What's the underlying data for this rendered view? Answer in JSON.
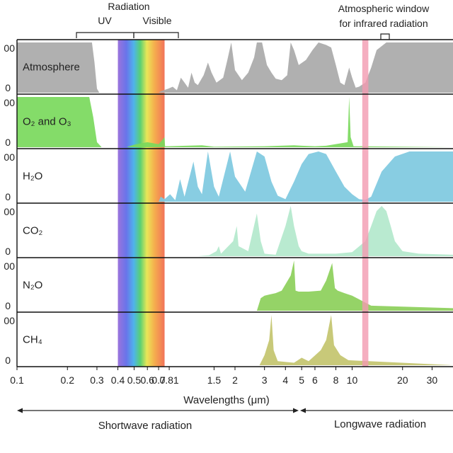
{
  "chart_data": {
    "type": "area",
    "x_scale": "log",
    "x_range": [
      0.1,
      40
    ],
    "xlabel": "Wavelengths (μm)",
    "x_ticks": [
      {
        "value": 0.1,
        "label": "0.1"
      },
      {
        "value": 0.2,
        "label": "0.2"
      },
      {
        "value": 0.3,
        "label": "0.3"
      },
      {
        "value": 0.4,
        "label": "0.4"
      },
      {
        "value": 0.5,
        "label": "0.5"
      },
      {
        "value": 0.6,
        "label": "0.6"
      },
      {
        "value": 0.7,
        "label": "0.7"
      },
      {
        "value": 0.81,
        "label": "0.81"
      },
      {
        "value": 1.5,
        "label": "1.5"
      },
      {
        "value": 2,
        "label": "2"
      },
      {
        "value": 3,
        "label": "3"
      },
      {
        "value": 4,
        "label": "4"
      },
      {
        "value": 5,
        "label": "5"
      },
      {
        "value": 6,
        "label": "6"
      },
      {
        "value": 8,
        "label": "8"
      },
      {
        "value": 10,
        "label": "10"
      },
      {
        "value": 20,
        "label": "20"
      },
      {
        "value": 30,
        "label": "30"
      }
    ],
    "y_range": [
      0,
      100
    ],
    "y_ticks_top": "00",
    "y_ticks_bottom": "0",
    "annotations": {
      "radiation": "Radiation",
      "uv": "UV",
      "visible": "Visible",
      "window_line1": "Atmospheric window",
      "window_line2": "for infrared radiation",
      "shortwave": "Shortwave radiation",
      "longwave": "Longwave radiation"
    },
    "bands": {
      "uv": [
        0.2,
        0.4
      ],
      "visible": [
        0.4,
        0.76
      ],
      "atmospheric_window": [
        11.5,
        12.5
      ]
    },
    "panels": [
      {
        "name": "Atmosphere",
        "color": "#a9a9a9",
        "points": [
          [
            0.1,
            100
          ],
          [
            0.28,
            100
          ],
          [
            0.29,
            60
          ],
          [
            0.3,
            8
          ],
          [
            0.31,
            0
          ],
          [
            0.7,
            0
          ],
          [
            0.72,
            3
          ],
          [
            0.8,
            8
          ],
          [
            0.85,
            12
          ],
          [
            0.9,
            5
          ],
          [
            0.95,
            30
          ],
          [
            1.0,
            20
          ],
          [
            1.05,
            10
          ],
          [
            1.1,
            40
          ],
          [
            1.15,
            20
          ],
          [
            1.2,
            15
          ],
          [
            1.3,
            35
          ],
          [
            1.38,
            60
          ],
          [
            1.45,
            40
          ],
          [
            1.55,
            20
          ],
          [
            1.7,
            30
          ],
          [
            1.8,
            65
          ],
          [
            1.9,
            100
          ],
          [
            2.0,
            45
          ],
          [
            2.2,
            25
          ],
          [
            2.4,
            40
          ],
          [
            2.6,
            70
          ],
          [
            2.7,
            100
          ],
          [
            2.9,
            100
          ],
          [
            3.1,
            55
          ],
          [
            3.3,
            40
          ],
          [
            3.5,
            28
          ],
          [
            3.8,
            25
          ],
          [
            4.1,
            35
          ],
          [
            4.3,
            100
          ],
          [
            4.5,
            85
          ],
          [
            4.8,
            55
          ],
          [
            5.3,
            65
          ],
          [
            5.8,
            85
          ],
          [
            6.3,
            100
          ],
          [
            7,
            95
          ],
          [
            7.5,
            90
          ],
          [
            8,
            55
          ],
          [
            8.5,
            20
          ],
          [
            9,
            15
          ],
          [
            9.6,
            50
          ],
          [
            10,
            30
          ],
          [
            10.5,
            10
          ],
          [
            11,
            12
          ],
          [
            12,
            20
          ],
          [
            13,
            50
          ],
          [
            14,
            85
          ],
          [
            16,
            100
          ],
          [
            40,
            100
          ]
        ]
      },
      {
        "name": "O₂ and O₃",
        "color": "#7ad95c",
        "points": [
          [
            0.1,
            100
          ],
          [
            0.27,
            100
          ],
          [
            0.285,
            60
          ],
          [
            0.3,
            10
          ],
          [
            0.32,
            0
          ],
          [
            0.45,
            0
          ],
          [
            0.5,
            5
          ],
          [
            0.6,
            10
          ],
          [
            0.7,
            6
          ],
          [
            0.76,
            20
          ],
          [
            0.765,
            2
          ],
          [
            0.8,
            2
          ],
          [
            1.27,
            4
          ],
          [
            1.5,
            1
          ],
          [
            3,
            2
          ],
          [
            4.5,
            4
          ],
          [
            5,
            3
          ],
          [
            6,
            2
          ],
          [
            7,
            3
          ],
          [
            9.4,
            10
          ],
          [
            9.6,
            100
          ],
          [
            9.8,
            20
          ],
          [
            10.2,
            2
          ],
          [
            40,
            0
          ]
        ]
      },
      {
        "name": "H₂O",
        "color": "#7ec9df",
        "points": [
          [
            0.7,
            0
          ],
          [
            0.72,
            10
          ],
          [
            0.76,
            5
          ],
          [
            0.82,
            15
          ],
          [
            0.88,
            3
          ],
          [
            0.94,
            45
          ],
          [
            1.0,
            10
          ],
          [
            1.13,
            80
          ],
          [
            1.2,
            30
          ],
          [
            1.27,
            15
          ],
          [
            1.38,
            100
          ],
          [
            1.5,
            30
          ],
          [
            1.6,
            10
          ],
          [
            1.87,
            100
          ],
          [
            2.0,
            50
          ],
          [
            2.3,
            20
          ],
          [
            2.7,
            100
          ],
          [
            3.0,
            90
          ],
          [
            3.3,
            40
          ],
          [
            3.6,
            12
          ],
          [
            4.0,
            5
          ],
          [
            4.5,
            40
          ],
          [
            5.0,
            75
          ],
          [
            5.5,
            95
          ],
          [
            6.3,
            100
          ],
          [
            7.0,
            95
          ],
          [
            8.0,
            60
          ],
          [
            9.0,
            30
          ],
          [
            10.0,
            15
          ],
          [
            11,
            5
          ],
          [
            12,
            4
          ],
          [
            13,
            10
          ],
          [
            15,
            60
          ],
          [
            18,
            90
          ],
          [
            22,
            100
          ],
          [
            40,
            100
          ]
        ]
      },
      {
        "name": "CO₂",
        "color": "#b3e8cc",
        "points": [
          [
            1.2,
            0
          ],
          [
            1.4,
            2
          ],
          [
            1.55,
            10
          ],
          [
            1.6,
            20
          ],
          [
            1.65,
            5
          ],
          [
            1.95,
            30
          ],
          [
            2.05,
            60
          ],
          [
            2.1,
            20
          ],
          [
            2.4,
            10
          ],
          [
            2.7,
            85
          ],
          [
            2.85,
            30
          ],
          [
            3.0,
            5
          ],
          [
            3.5,
            3
          ],
          [
            4.0,
            60
          ],
          [
            4.3,
            100
          ],
          [
            4.5,
            60
          ],
          [
            4.8,
            20
          ],
          [
            5.0,
            10
          ],
          [
            5.5,
            5
          ],
          [
            8,
            5
          ],
          [
            10,
            8
          ],
          [
            12,
            30
          ],
          [
            13,
            60
          ],
          [
            14,
            90
          ],
          [
            15,
            100
          ],
          [
            16,
            90
          ],
          [
            17,
            60
          ],
          [
            18,
            30
          ],
          [
            20,
            10
          ],
          [
            25,
            5
          ],
          [
            40,
            3
          ]
        ]
      },
      {
        "name": "N₂O",
        "color": "#8ccf5a",
        "points": [
          [
            2.7,
            0
          ],
          [
            2.85,
            25
          ],
          [
            3.0,
            30
          ],
          [
            3.5,
            35
          ],
          [
            3.8,
            40
          ],
          [
            4.3,
            70
          ],
          [
            4.5,
            100
          ],
          [
            4.6,
            40
          ],
          [
            4.8,
            38
          ],
          [
            5.5,
            38
          ],
          [
            6.5,
            40
          ],
          [
            7.0,
            60
          ],
          [
            7.6,
            95
          ],
          [
            7.9,
            45
          ],
          [
            8.2,
            40
          ],
          [
            9.0,
            35
          ],
          [
            10,
            30
          ],
          [
            13,
            10
          ],
          [
            40,
            5
          ]
        ]
      },
      {
        "name": "CH₄",
        "color": "#c3c46e",
        "points": [
          [
            2.8,
            0
          ],
          [
            3.0,
            20
          ],
          [
            3.2,
            50
          ],
          [
            3.3,
            100
          ],
          [
            3.4,
            30
          ],
          [
            3.6,
            8
          ],
          [
            4.5,
            5
          ],
          [
            5.0,
            15
          ],
          [
            5.5,
            8
          ],
          [
            6.5,
            30
          ],
          [
            7.0,
            50
          ],
          [
            7.5,
            100
          ],
          [
            7.8,
            40
          ],
          [
            8.5,
            20
          ],
          [
            9.5,
            10
          ],
          [
            40,
            0
          ]
        ]
      }
    ]
  }
}
